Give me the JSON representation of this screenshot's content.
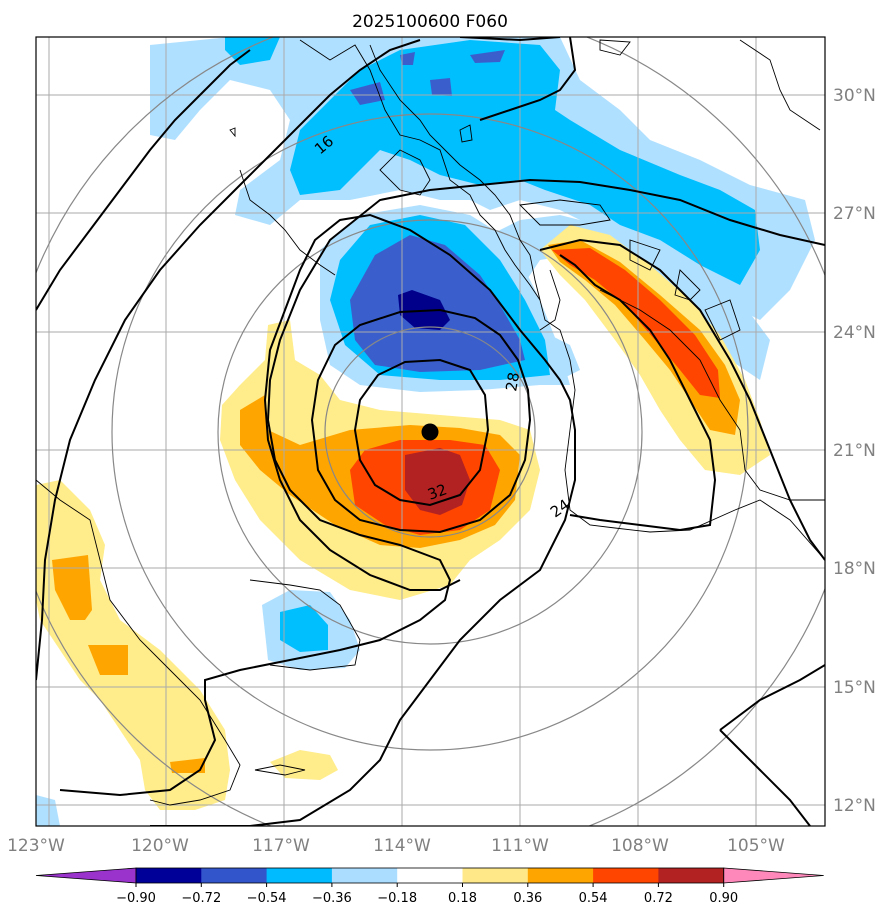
{
  "title": "2025100600 F060",
  "lon_labels": [
    "123°W",
    "120°W",
    "117°W",
    "114°W",
    "111°W",
    "108°W",
    "105°W"
  ],
  "lat_labels": [
    "30°N",
    "27°N",
    "24°N",
    "21°N",
    "18°N",
    "15°N",
    "12°N"
  ],
  "contour_labels": [
    "16",
    "28",
    "32",
    "24"
  ],
  "colorbar": {
    "ticks": [
      "−0.90",
      "−0.72",
      "−0.54",
      "−0.36",
      "−0.18",
      "0.18",
      "0.36",
      "0.54",
      "0.72",
      "0.90"
    ],
    "colors": [
      "#9933cc",
      "#000099",
      "#3355cc",
      "#00bbff",
      "#aaddff",
      "#ffffff",
      "#ffe888",
      "#ffa500",
      "#ff4500",
      "#b22222",
      "#ff88bb"
    ]
  },
  "fill_colors": {
    "light_blue": "#b0e0ff",
    "cyan": "#00bfff",
    "blue": "#3a5fcd",
    "navy": "#00008b",
    "light_yellow": "#ffec8b",
    "orange": "#ffa500",
    "red_orange": "#ff4500",
    "dark_red": "#b22222"
  },
  "storm_center": {
    "lon": "113.3°W",
    "lat": "21.5°N"
  }
}
